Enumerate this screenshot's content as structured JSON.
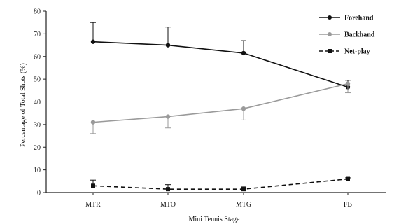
{
  "chart_data": {
    "type": "line",
    "title": "",
    "xlabel": "Mini Tennis Stage",
    "ylabel": "Percentage of Total Shots (%)",
    "categories": [
      "MTR",
      "MTO",
      "MTG",
      "FB"
    ],
    "ylim": [
      0,
      80
    ],
    "yticks": [
      0,
      10,
      20,
      30,
      40,
      50,
      60,
      70,
      80
    ],
    "grid": false,
    "legend_position": "top-right",
    "series": [
      {
        "name": "Forehand",
        "values": [
          66.5,
          65,
          61.5,
          46.5
        ],
        "error": [
          8.5,
          8,
          5.5,
          3
        ],
        "color": "#111111",
        "line_style": "solid",
        "marker": "circle"
      },
      {
        "name": "Backhand",
        "values": [
          31,
          33.5,
          37,
          48
        ],
        "error": [
          5,
          5,
          5,
          4
        ],
        "color": "#9a9a9a",
        "line_style": "solid",
        "marker": "circle"
      },
      {
        "name": "Net-play",
        "values": [
          3,
          1.5,
          1.5,
          6
        ],
        "error": [
          2.5,
          2,
          1,
          0.5
        ],
        "color": "#111111",
        "line_style": "dashed",
        "marker": "square"
      }
    ]
  }
}
